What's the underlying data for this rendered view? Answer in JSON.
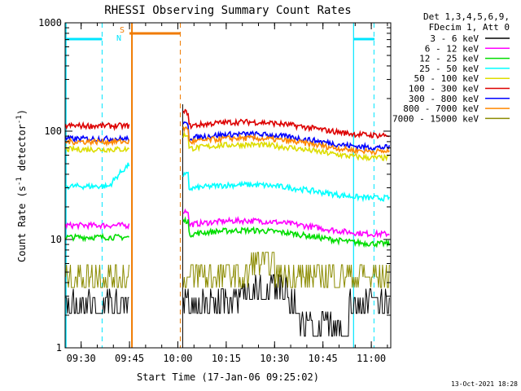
{
  "chart_data": {
    "type": "line",
    "title": "RHESSI Observing Summary Count Rates",
    "xlabel": "Start Time (17-Jan-06 09:25:02)",
    "ylabel": "Count Rate (s⁻¹ detector⁻¹)",
    "ylabel_parts": {
      "main": "Count Rate (s",
      "sup1": "-1",
      "mid": " detector",
      "sup2": "-1",
      "end": ")"
    },
    "yscale": "log",
    "ylim": [
      1,
      1000
    ],
    "xlim_minutes_after_0925": [
      0,
      101
    ],
    "x_tick_labels": [
      "09:30",
      "09:45",
      "10:00",
      "10:15",
      "10:30",
      "10:45",
      "11:00"
    ],
    "y_tick_labels": [
      "1",
      "10",
      "100",
      "1000"
    ],
    "legend_header": [
      "Det 1,3,4,5,6,9,",
      "FDecim 1, Att 0"
    ],
    "legend_position": "right",
    "footer_date": "13-Oct-2021 18:28",
    "flag_labels": {
      "N": "N",
      "S": "S"
    },
    "colors": {
      "night": "#00e5ff",
      "saa": "#f07b00"
    },
    "night_intervals": [
      [
        "09:25:02",
        "09:36:30"
      ],
      [
        "10:54:30",
        "11:01:00"
      ]
    ],
    "saa_interval": [
      "09:45:00",
      "10:01:00"
    ],
    "data_gap": [
      "09:45:00",
      "10:01:00"
    ],
    "series": [
      {
        "name": "3 - 6 keV",
        "color": "#000000",
        "level_before": 2.6,
        "level_after": 2.6,
        "level_mid": 3.5,
        "level_late": 1.6
      },
      {
        "name": "6 - 12 keV",
        "color": "#ff00ff",
        "level_before": 13.5,
        "level_after": 13.5
      },
      {
        "name": "12 - 25 keV",
        "color": "#00dd00",
        "level_before": 10.5,
        "level_after": 11.0
      },
      {
        "name": "25 - 50 keV",
        "color": "#00ffff",
        "level_before": 31,
        "level_after": 29
      },
      {
        "name": "50 - 100 keV",
        "color": "#dddd00",
        "level_before": 68,
        "level_after": 68
      },
      {
        "name": "100 - 300 keV",
        "color": "#dd0000",
        "level_before": 112,
        "level_after": 110
      },
      {
        "name": "300 - 800 keV",
        "color": "#0000ff",
        "level_before": 85,
        "level_after": 85
      },
      {
        "name": "800 - 7000 keV",
        "color": "#ff8800",
        "level_before": 80,
        "level_after": 78
      },
      {
        "name": "7000 - 15000 keV",
        "color": "#8b8b00",
        "level_before": 4.5,
        "level_after": 4.5
      }
    ]
  }
}
